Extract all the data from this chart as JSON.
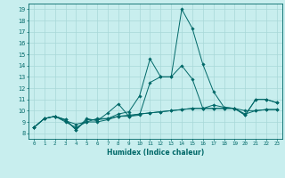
{
  "title": "",
  "xlabel": "Humidex (Indice chaleur)",
  "ylabel": "",
  "xlim": [
    -0.5,
    23.5
  ],
  "ylim": [
    7.5,
    19.5
  ],
  "xticks": [
    0,
    1,
    2,
    3,
    4,
    5,
    6,
    7,
    8,
    9,
    10,
    11,
    12,
    13,
    14,
    15,
    16,
    17,
    18,
    19,
    20,
    21,
    22,
    23
  ],
  "yticks": [
    8,
    9,
    10,
    11,
    12,
    13,
    14,
    15,
    16,
    17,
    18,
    19
  ],
  "bg_color": "#c8eeee",
  "grid_color": "#a8d8d8",
  "line_color": "#006868",
  "series": [
    [
      8.5,
      9.3,
      9.5,
      9.2,
      8.3,
      9.3,
      9.1,
      9.8,
      10.6,
      9.5,
      9.6,
      12.5,
      13.0,
      13.0,
      19.0,
      17.3,
      14.1,
      11.7,
      10.3,
      10.2,
      9.6,
      11.0,
      11.0,
      10.7
    ],
    [
      8.5,
      9.3,
      9.5,
      9.1,
      8.8,
      9.0,
      9.3,
      9.3,
      9.5,
      9.6,
      9.7,
      9.8,
      9.9,
      10.0,
      10.1,
      10.2,
      10.2,
      10.2,
      10.2,
      10.2,
      10.0,
      10.0,
      10.1,
      10.1
    ],
    [
      8.5,
      9.3,
      9.5,
      9.2,
      8.3,
      9.2,
      9.2,
      9.3,
      9.7,
      9.9,
      11.3,
      14.6,
      13.0,
      13.0,
      14.0,
      12.8,
      10.2,
      10.5,
      10.3,
      10.2,
      9.6,
      11.0,
      11.0,
      10.7
    ],
    [
      8.5,
      9.3,
      9.5,
      9.0,
      8.5,
      9.0,
      9.0,
      9.2,
      9.5,
      9.5,
      9.7,
      9.8,
      9.9,
      10.0,
      10.1,
      10.2,
      10.2,
      10.2,
      10.2,
      10.2,
      9.7,
      10.0,
      10.1,
      10.1
    ]
  ]
}
